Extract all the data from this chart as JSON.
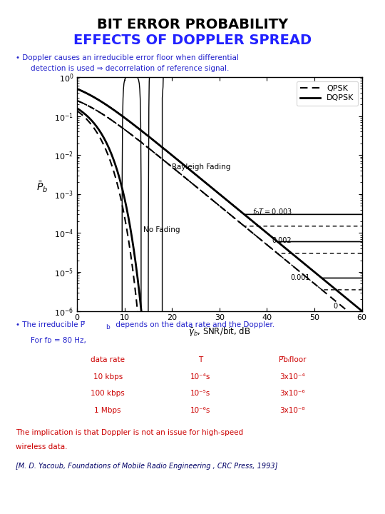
{
  "title1": "BIT ERROR PROBABILITY",
  "title2": "EFFECTS OF DOPPLER SPREAD",
  "title1_color": "#000000",
  "title2_color": "#2222FF",
  "bullet1_color": "#2222CC",
  "bullet2_color": "#2222CC",
  "implication_color": "#CC0000",
  "reference_color": "#000066",
  "table_color": "#CC0000",
  "xlabel": "$\\bar{\\gamma}_b$, SNR/bit, dB",
  "ylabel": "$\\bar{P}_b$",
  "xmin": 0,
  "xmax": 60,
  "ymin": 1e-06,
  "ymax": 1.0,
  "background": "#FFFFFF",
  "floors": [
    0.0003,
    6e-05,
    7e-06,
    0
  ],
  "floor_labels": [
    "f$_D$T=0.003",
    "0.002",
    "0.001",
    "0"
  ]
}
